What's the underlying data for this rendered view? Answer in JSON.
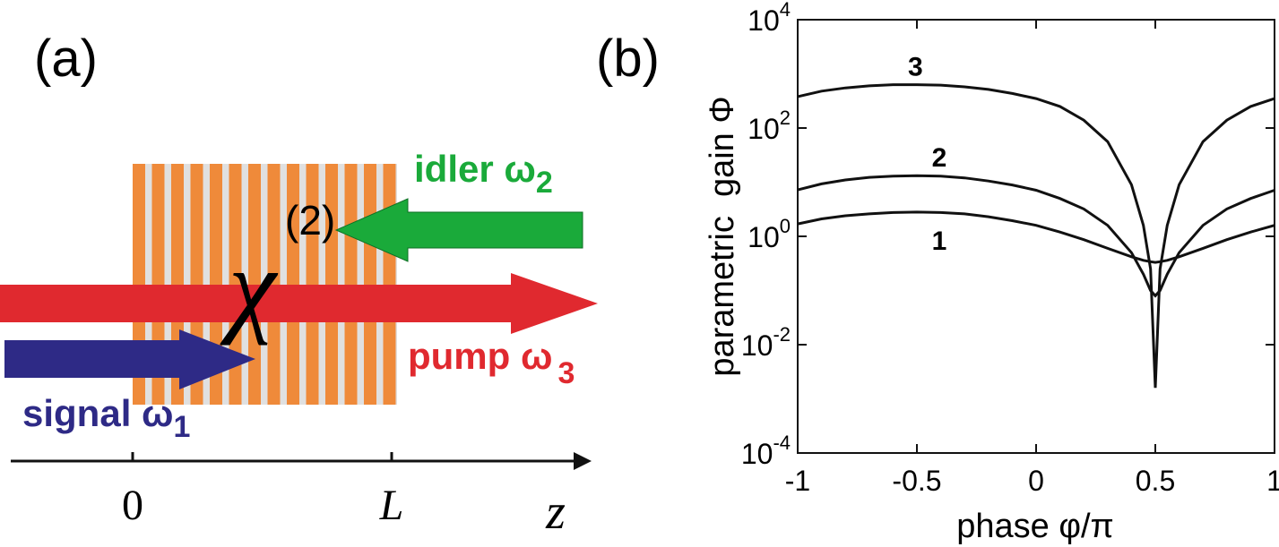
{
  "diagram": {
    "panel_label": "(a)",
    "susceptibility": {
      "symbol": "χ",
      "order": "(2)"
    },
    "idler": {
      "label": "idler ω",
      "subscript": "2"
    },
    "pump": {
      "label": "pump ω",
      "subscript": "3"
    },
    "signal": {
      "label": "signal ω",
      "subscript": "1"
    },
    "axis": {
      "origin": "0",
      "end": "L",
      "variable": "z"
    }
  },
  "chart_data": {
    "type": "line",
    "panel_label": "(b)",
    "x_label": "phase φ/π",
    "y_label": "parametric  gain Φ",
    "log_y": true,
    "xlim": [
      -1,
      1
    ],
    "ylim": [
      0.0001,
      10000
    ],
    "xticks": [
      -1,
      -0.5,
      0,
      0.5,
      1
    ],
    "yticks": [
      {
        "value": 0.0001,
        "label": "10",
        "exponent": "-4"
      },
      {
        "value": 0.01,
        "label": "10",
        "exponent": "-2"
      },
      {
        "value": 1,
        "label": "10",
        "exponent": "0"
      },
      {
        "value": 100,
        "label": "10",
        "exponent": "2"
      },
      {
        "value": 10000,
        "label": "10",
        "exponent": "4"
      }
    ],
    "x": [
      -1,
      -0.9,
      -0.8,
      -0.7,
      -0.6,
      -0.5,
      -0.4,
      -0.3,
      -0.2,
      -0.1,
      0,
      0.1,
      0.2,
      0.3,
      0.4,
      0.45,
      0.48,
      0.5,
      0.52,
      0.55,
      0.6,
      0.7,
      0.8,
      0.9,
      1
    ],
    "series": [
      {
        "name": "3",
        "color": "#111111",
        "values": [
          380,
          480,
          550,
          600,
          630,
          630,
          620,
          575,
          515,
          435,
          350,
          250,
          140,
          56,
          9,
          1.6,
          0.25,
          0.0016,
          0.25,
          1.6,
          9,
          56,
          140,
          250,
          350
        ]
      },
      {
        "name": "2",
        "color": "#111111",
        "values": [
          7.2,
          9.3,
          11,
          12.3,
          12.9,
          13.2,
          12.9,
          12,
          10.5,
          8.9,
          7.1,
          5,
          3.2,
          1.6,
          0.5,
          0.2,
          0.1,
          0.08,
          0.1,
          0.2,
          0.5,
          1.6,
          3.2,
          5,
          7.1
        ]
      },
      {
        "name": "1",
        "color": "#111111",
        "values": [
          1.7,
          2.1,
          2.4,
          2.6,
          2.75,
          2.8,
          2.75,
          2.6,
          2.3,
          1.95,
          1.6,
          1.2,
          0.87,
          0.6,
          0.42,
          0.36,
          0.34,
          0.33,
          0.34,
          0.36,
          0.42,
          0.6,
          0.87,
          1.2,
          1.6
        ]
      }
    ]
  }
}
